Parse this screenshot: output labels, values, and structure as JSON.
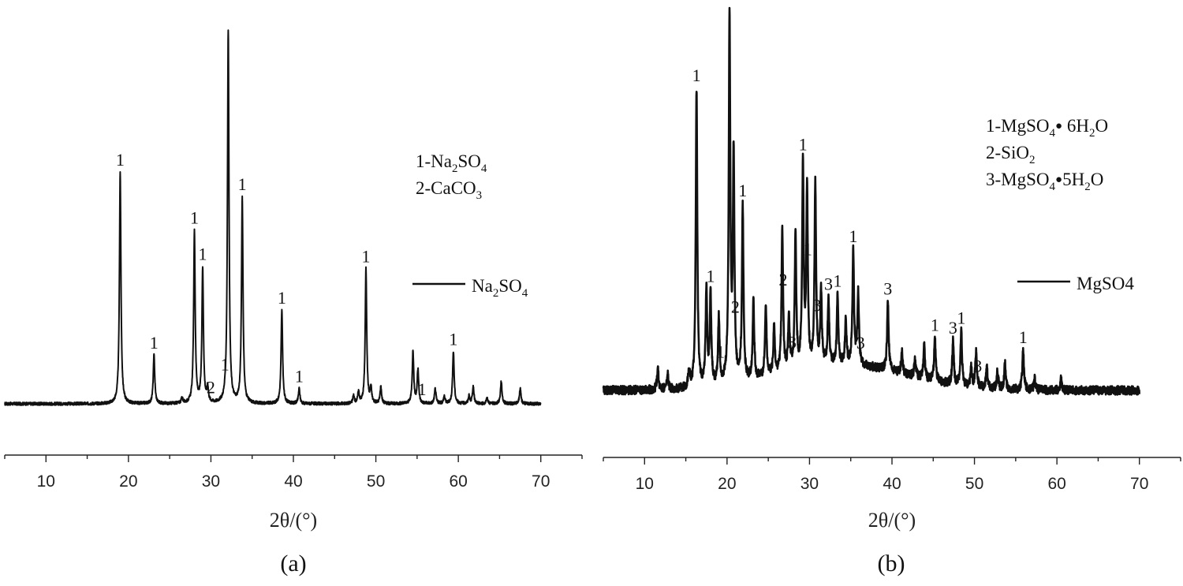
{
  "chart_data": [
    {
      "type": "line",
      "panel_label": "(a)",
      "xlabel": "2θ/(°)",
      "xlim": [
        5,
        75
      ],
      "xticks": [
        10,
        20,
        30,
        40,
        50,
        60,
        70
      ],
      "y_axis_shown": false,
      "phase_legend": [
        {
          "num": "1",
          "formula": [
            {
              "t": "-Na"
            },
            {
              "t": "2",
              "s": "sub"
            },
            {
              "t": "SO"
            },
            {
              "t": "4",
              "s": "sub"
            }
          ]
        },
        {
          "num": "2",
          "formula": [
            {
              "t": "-CaCO"
            },
            {
              "t": "3",
              "s": "sub"
            }
          ]
        }
      ],
      "series": [
        {
          "name": "Na2SO4",
          "label_parts": [
            {
              "t": "Na"
            },
            {
              "t": "2",
              "s": "sub"
            },
            {
              "t": "SO"
            },
            {
              "t": "4",
              "s": "sub"
            }
          ]
        }
      ],
      "baseline": 0.03,
      "noise": 0.004,
      "x_range": [
        5,
        70
      ],
      "peaks": [
        [
          19.0,
          0.62
        ],
        [
          23.1,
          0.13
        ],
        [
          26.5,
          0.015
        ],
        [
          28.0,
          0.46
        ],
        [
          29.0,
          0.36
        ],
        [
          29.6,
          0.04
        ],
        [
          32.1,
          1.0
        ],
        [
          33.8,
          0.55
        ],
        [
          38.6,
          0.25
        ],
        [
          40.7,
          0.04
        ],
        [
          47.3,
          0.02
        ],
        [
          47.9,
          0.03
        ],
        [
          48.8,
          0.36
        ],
        [
          49.4,
          0.04
        ],
        [
          50.6,
          0.045
        ],
        [
          54.5,
          0.14
        ],
        [
          55.1,
          0.09
        ],
        [
          57.2,
          0.04
        ],
        [
          58.3,
          0.02
        ],
        [
          59.4,
          0.14
        ],
        [
          61.3,
          0.02
        ],
        [
          61.8,
          0.045
        ],
        [
          63.5,
          0.015
        ],
        [
          65.2,
          0.06
        ],
        [
          67.5,
          0.04
        ]
      ],
      "peak_labels": [
        {
          "x": 19.0,
          "text": "1"
        },
        {
          "x": 23.1,
          "text": "1"
        },
        {
          "x": 28.0,
          "text": "1"
        },
        {
          "x": 29.0,
          "text": "1"
        },
        {
          "x": 30.0,
          "text": "2"
        },
        {
          "x": 31.7,
          "text": "1"
        },
        {
          "x": 33.8,
          "text": "1"
        },
        {
          "x": 38.6,
          "text": "1"
        },
        {
          "x": 40.7,
          "text": "1"
        },
        {
          "x": 48.8,
          "text": "1"
        },
        {
          "x": 55.6,
          "text": "1"
        },
        {
          "x": 59.4,
          "text": "1"
        }
      ]
    },
    {
      "type": "line",
      "panel_label": "(b)",
      "xlabel": "2θ/(°)",
      "xlim": [
        5,
        75
      ],
      "xticks": [
        10,
        20,
        30,
        40,
        50,
        60,
        70
      ],
      "y_axis_shown": false,
      "phase_legend": [
        {
          "num": "1",
          "formula": [
            {
              "t": "-MgSO"
            },
            {
              "t": "4",
              "s": "sub"
            },
            {
              "t": "●",
              "s": "dot"
            },
            {
              "t": " 6H"
            },
            {
              "t": "2",
              "s": "sub"
            },
            {
              "t": "O"
            }
          ]
        },
        {
          "num": "2",
          "formula": [
            {
              "t": "-SiO"
            },
            {
              "t": "2",
              "s": "sub"
            }
          ]
        },
        {
          "num": "3",
          "formula": [
            {
              "t": "-MgSO"
            },
            {
              "t": "4",
              "s": "sub"
            },
            {
              "t": "●",
              "s": "dot"
            },
            {
              "t": "5H"
            },
            {
              "t": "2",
              "s": "sub"
            },
            {
              "t": "O"
            }
          ]
        }
      ],
      "series": [
        {
          "name": "MgSO4",
          "label_parts": [
            {
              "t": "MgSO"
            },
            {
              "t": "4"
            }
          ]
        }
      ],
      "baseline": 0.03,
      "noise": 0.012,
      "x_range": [
        5,
        70
      ],
      "hump": {
        "center": 34,
        "width": 11,
        "height": 0.07
      },
      "peaks": [
        [
          11.6,
          0.06
        ],
        [
          12.8,
          0.04
        ],
        [
          15.4,
          0.05
        ],
        [
          16.3,
          0.82
        ],
        [
          17.5,
          0.27
        ],
        [
          18.0,
          0.25
        ],
        [
          19.0,
          0.18
        ],
        [
          20.3,
          1.0
        ],
        [
          20.8,
          0.62
        ],
        [
          21.9,
          0.48
        ],
        [
          23.2,
          0.22
        ],
        [
          24.7,
          0.2
        ],
        [
          25.7,
          0.13
        ],
        [
          26.7,
          0.39
        ],
        [
          27.5,
          0.14
        ],
        [
          28.3,
          0.37
        ],
        [
          29.2,
          0.55
        ],
        [
          29.7,
          0.48
        ],
        [
          30.7,
          0.5
        ],
        [
          31.4,
          0.2
        ],
        [
          32.3,
          0.18
        ],
        [
          33.4,
          0.19
        ],
        [
          34.4,
          0.12
        ],
        [
          35.3,
          0.31
        ],
        [
          35.9,
          0.2
        ],
        [
          39.5,
          0.19
        ],
        [
          41.2,
          0.06
        ],
        [
          42.8,
          0.05
        ],
        [
          43.9,
          0.09
        ],
        [
          45.2,
          0.12
        ],
        [
          47.4,
          0.12
        ],
        [
          48.4,
          0.15
        ],
        [
          49.6,
          0.05
        ],
        [
          50.2,
          0.1
        ],
        [
          51.5,
          0.06
        ],
        [
          52.8,
          0.05
        ],
        [
          53.7,
          0.07
        ],
        [
          55.9,
          0.11
        ],
        [
          57.3,
          0.03
        ],
        [
          60.5,
          0.03
        ]
      ],
      "peak_labels": [
        {
          "x": 16.3,
          "text": "1"
        },
        {
          "x": 18.0,
          "text": "1"
        },
        {
          "x": 19.2,
          "text": "1"
        },
        {
          "x": 21.0,
          "text": "2"
        },
        {
          "x": 21.9,
          "text": "1"
        },
        {
          "x": 26.8,
          "text": "2"
        },
        {
          "x": 27.9,
          "text": "3"
        },
        {
          "x": 29.2,
          "text": "1"
        },
        {
          "x": 29.8,
          "text": "1"
        },
        {
          "x": 30.9,
          "text": "3"
        },
        {
          "x": 32.3,
          "text": "3"
        },
        {
          "x": 33.4,
          "text": "1"
        },
        {
          "x": 35.3,
          "text": "1"
        },
        {
          "x": 36.2,
          "text": "3"
        },
        {
          "x": 39.5,
          "text": "3"
        },
        {
          "x": 45.2,
          "text": "1"
        },
        {
          "x": 47.4,
          "text": "3"
        },
        {
          "x": 48.4,
          "text": "1"
        },
        {
          "x": 50.4,
          "text": "3"
        },
        {
          "x": 55.9,
          "text": "1"
        }
      ]
    }
  ]
}
